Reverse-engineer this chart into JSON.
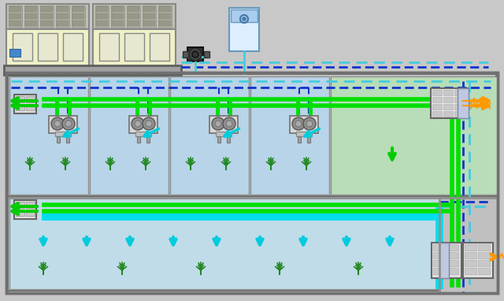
{
  "bg_color": "#c8c8c8",
  "room_blue_fill": "#b8d4e8",
  "room_green_fill": "#b8ddb8",
  "room_lower_fill": "#c0dce8",
  "chiller_fill": "#f0f0c8",
  "chiller_border": "#888888",
  "pipe_green": "#00e000",
  "pipe_cyan_thick": "#00ddee",
  "pipe_blue_dash": "#1133cc",
  "pipe_cyan_dash": "#44ccdd",
  "pipe_orange": "#ff9900",
  "arrow_green": "#00cc00",
  "arrow_cyan": "#00ccdd",
  "arrow_orange": "#ff9900",
  "wall_color": "#909090",
  "wall_fill": "#c8c8c8"
}
